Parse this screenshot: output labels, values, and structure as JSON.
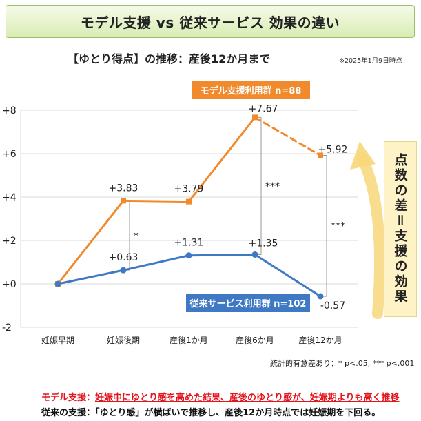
{
  "header": {
    "title": "モデル支援 vs 従来サービス 効果の違い"
  },
  "subtitle": "【ゆとり得点】の推移：産後12か月まで",
  "note": "※2025年1月9日時点",
  "side_label": "点数の差＝支援の効果",
  "significance_note": "統計的有意差あり：* p<.05, *** p<.001",
  "footer": {
    "line1_prefix": "モデル支援：",
    "line1_underlined": "妊娠中にゆとり感を高めた結果、産後のゆとり感が、妊娠期よりも高く推移",
    "line2": "従来の支援：「ゆとり感」が横ばいで推移し、産後12か月時点では妊娠期を下回る。"
  },
  "colors": {
    "model": "#f08a2c",
    "conventional": "#3f79c4",
    "grid": "#d9d9d9",
    "arrow": "#f7d77a"
  },
  "chart_data": {
    "type": "line",
    "categories": [
      "妊娠早期",
      "妊娠後期",
      "産後1か月",
      "産後6か月",
      "産後12か月"
    ],
    "y_ticks": [
      "+8",
      "+6",
      "+4",
      "+2",
      "+0",
      "-2"
    ],
    "ylim": [
      -2,
      8
    ],
    "grid": true,
    "series": [
      {
        "name": "モデル支援利用群 n=88",
        "values": [
          0,
          3.83,
          3.79,
          7.67,
          5.92
        ],
        "labels": [
          "",
          "+3.83",
          "+3.79",
          "+7.67",
          "+5.92"
        ],
        "last_segment_dashed": true
      },
      {
        "name": "従来サービス利用群 n=102",
        "values": [
          0,
          0.63,
          1.31,
          1.35,
          -0.57
        ],
        "labels": [
          "",
          "+0.63",
          "+1.31",
          "+1.35",
          "-0.57"
        ]
      }
    ],
    "significance": [
      {
        "category_index": 1,
        "mark": "*"
      },
      {
        "category_index": 3,
        "mark": "***"
      },
      {
        "category_index": 4,
        "mark": "***"
      }
    ]
  }
}
